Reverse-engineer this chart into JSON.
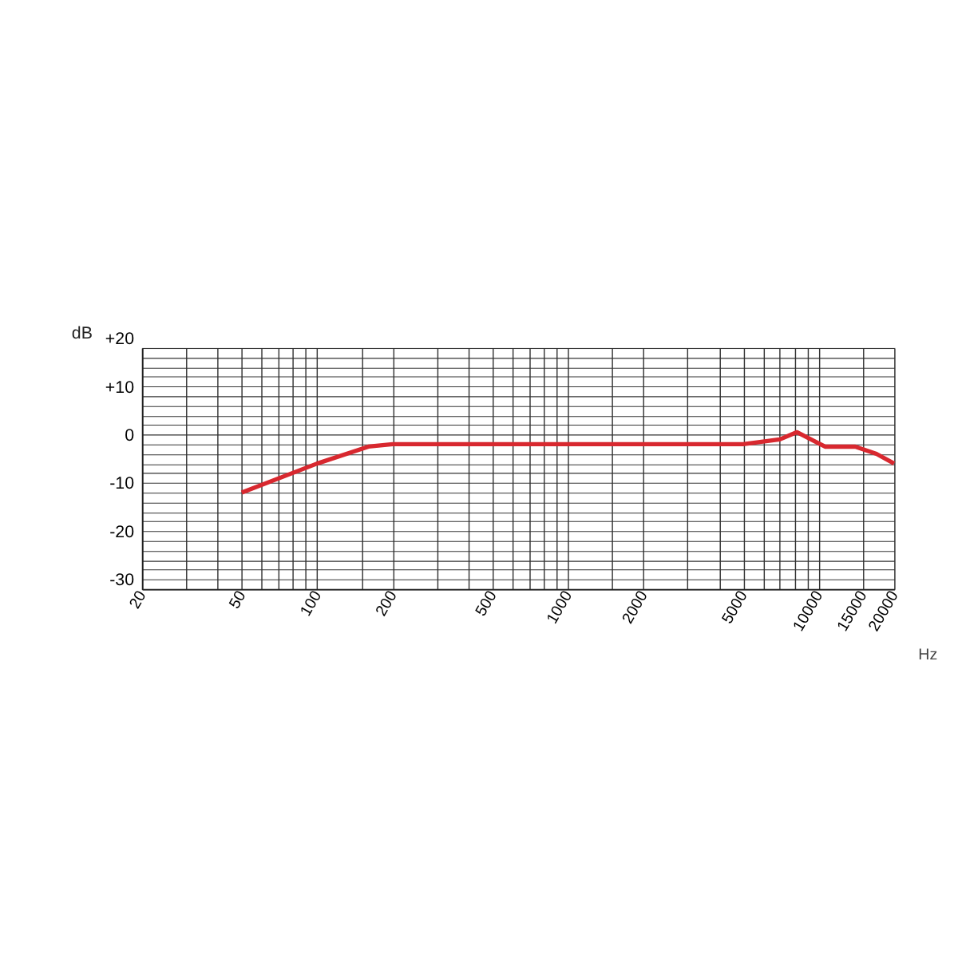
{
  "chart_data": {
    "type": "line",
    "xlabel": "Hz",
    "ylabel": "dB",
    "log": "x",
    "grid": true,
    "line_style": "solid",
    "marker": "none",
    "xlim": [
      20,
      20000
    ],
    "ylim": [
      -30,
      20
    ],
    "xticks": [
      20,
      {
        "value": 30,
        "label": null
      },
      {
        "value": 40,
        "label": null
      },
      50,
      {
        "value": 60,
        "label": null
      },
      {
        "value": 70,
        "label": null
      },
      {
        "value": 80,
        "label": null
      },
      {
        "value": 90,
        "label": null
      },
      100,
      {
        "value": 150,
        "label": null
      },
      200,
      {
        "value": 300,
        "label": null
      },
      {
        "value": 400,
        "label": null
      },
      500,
      {
        "value": 600,
        "label": null
      },
      {
        "value": 700,
        "label": null
      },
      {
        "value": 800,
        "label": null
      },
      {
        "value": 900,
        "label": null
      },
      1000,
      {
        "value": 1500,
        "label": null
      },
      2000,
      {
        "value": 3000,
        "label": null
      },
      {
        "value": 4000,
        "label": null
      },
      5000,
      {
        "value": 6000,
        "label": null
      },
      {
        "value": 7000,
        "label": null
      },
      {
        "value": 8000,
        "label": null
      },
      {
        "value": 9000,
        "label": null
      },
      10000,
      15000,
      20000
    ],
    "yticks": [
      {
        "value": -30,
        "label": "-30"
      },
      {
        "value": -28,
        "label": null
      },
      {
        "value": -26,
        "label": null
      },
      {
        "value": -24,
        "label": null
      },
      {
        "value": -22,
        "label": null
      },
      {
        "value": -20,
        "label": "-20"
      },
      {
        "value": -18,
        "label": null
      },
      {
        "value": -16,
        "label": null
      },
      {
        "value": -14,
        "label": null
      },
      {
        "value": -12,
        "label": null
      },
      {
        "value": -10,
        "label": "-10"
      },
      {
        "value": -8,
        "label": null
      },
      {
        "value": -6,
        "label": null
      },
      {
        "value": -4,
        "label": null
      },
      {
        "value": -2,
        "label": null
      },
      {
        "value": 0,
        "label": "0"
      },
      {
        "value": 2,
        "label": null
      },
      {
        "value": 4,
        "label": null
      },
      {
        "value": 6,
        "label": null
      },
      {
        "value": 8,
        "label": null
      },
      {
        "value": 10,
        "label": "+10"
      },
      {
        "value": 12,
        "label": null
      },
      {
        "value": 14,
        "label": null
      },
      {
        "value": 16,
        "label": null
      },
      {
        "value": 18,
        "label": null
      },
      {
        "value": 20,
        "label": "+20"
      }
    ],
    "x": [
      50,
      100,
      160,
      200,
      5000,
      7000,
      8200,
      10600,
      14000,
      17000,
      20000
    ],
    "series": [
      {
        "color": "#d8282f",
        "values": [
          -10,
          -4,
          -0.5,
          0,
          0,
          1,
          2.5,
          -0.5,
          -0.5,
          -2,
          -4
        ]
      }
    ]
  }
}
